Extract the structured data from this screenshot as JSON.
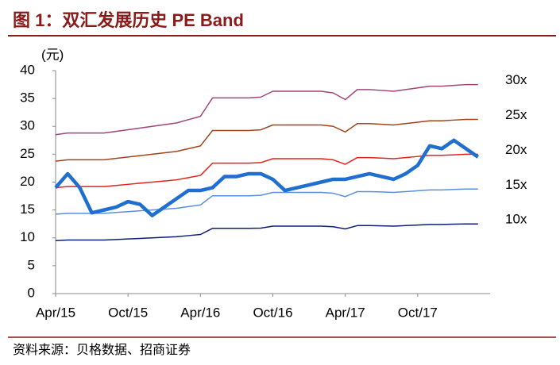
{
  "chart_data": {
    "type": "line",
    "title": "图 1：双汇发展历史 PE Band",
    "source": "资料来源：贝格数据、招商证券",
    "y_label": "(元)",
    "x": [
      0,
      1,
      2,
      3,
      4,
      5,
      6,
      7,
      8,
      9,
      10,
      11,
      12,
      13,
      14,
      15,
      16,
      17,
      18,
      19,
      20,
      21,
      22,
      23,
      24,
      25,
      26,
      27,
      28,
      29,
      30,
      31,
      32,
      33,
      34,
      35
    ],
    "xlim": [
      0,
      36
    ],
    "xticks": [
      {
        "value": 0,
        "label": "Apr/15"
      },
      {
        "value": 6,
        "label": "Oct/15"
      },
      {
        "value": 12,
        "label": "Apr/16"
      },
      {
        "value": 18,
        "label": "Oct/16"
      },
      {
        "value": 24,
        "label": "Apr/17"
      },
      {
        "value": 30,
        "label": "Oct/17"
      }
    ],
    "ylim": [
      0,
      40
    ],
    "yticks": [
      0,
      5,
      10,
      15,
      20,
      25,
      30,
      35,
      40
    ],
    "series": [
      {
        "name": "30x",
        "color": "#a0457a",
        "values": [
          28.5,
          28.8,
          28.8,
          28.8,
          28.8,
          29.1,
          29.4,
          29.7,
          30,
          30.3,
          30.6,
          31.2,
          31.8,
          35.1,
          35.1,
          35.1,
          35.1,
          35.25,
          36.3,
          36.3,
          36.3,
          36.3,
          36.3,
          36,
          34.8,
          36.6,
          36.6,
          36.45,
          36.3,
          36.6,
          36.9,
          37.2,
          37.2,
          37.35,
          37.5,
          37.5
        ]
      },
      {
        "name": "25x",
        "color": "#a0441c",
        "values": [
          23.75,
          24,
          24,
          24,
          24,
          24.25,
          24.5,
          24.75,
          25,
          25.25,
          25.5,
          26,
          26.5,
          29.25,
          29.25,
          29.25,
          29.25,
          29.38,
          30.25,
          30.25,
          30.25,
          30.25,
          30.25,
          30,
          29,
          30.5,
          30.5,
          30.38,
          30.25,
          30.5,
          30.75,
          31,
          31,
          31.13,
          31.25,
          31.25
        ]
      },
      {
        "name": "20x",
        "color": "#e2231a",
        "values": [
          19,
          19.2,
          19.2,
          19.2,
          19.2,
          19.4,
          19.6,
          19.8,
          20,
          20.2,
          20.4,
          20.8,
          21.2,
          23.4,
          23.4,
          23.4,
          23.4,
          23.5,
          24.2,
          24.2,
          24.2,
          24.2,
          24.2,
          24,
          23.2,
          24.4,
          24.4,
          24.3,
          24.2,
          24.4,
          24.6,
          24.8,
          24.8,
          24.9,
          25,
          25
        ]
      },
      {
        "name": "15x",
        "color": "#5b8fde",
        "values": [
          14.25,
          14.4,
          14.4,
          14.4,
          14.4,
          14.55,
          14.7,
          14.85,
          15,
          15.15,
          15.3,
          15.6,
          15.9,
          17.55,
          17.55,
          17.55,
          17.55,
          17.63,
          18.15,
          18.15,
          18.15,
          18.15,
          18.15,
          18,
          17.4,
          18.3,
          18.3,
          18.23,
          18.15,
          18.3,
          18.45,
          18.6,
          18.6,
          18.68,
          18.75,
          18.75
        ]
      },
      {
        "name": "10x",
        "color": "#0c1f78",
        "values": [
          9.5,
          9.6,
          9.6,
          9.6,
          9.6,
          9.7,
          9.8,
          9.9,
          10,
          10.1,
          10.2,
          10.4,
          10.6,
          11.7,
          11.7,
          11.7,
          11.7,
          11.75,
          12.1,
          12.1,
          12.1,
          12.1,
          12.1,
          12,
          11.6,
          12.2,
          12.2,
          12.15,
          12.1,
          12.2,
          12.3,
          12.4,
          12.4,
          12.45,
          12.5,
          12.5
        ]
      },
      {
        "color": "#1f6fd1",
        "values": [
          19,
          21.5,
          19,
          14.5,
          15,
          15.5,
          16.5,
          16,
          14,
          15.5,
          17,
          18.5,
          18.5,
          19,
          21,
          21,
          21.5,
          21.5,
          20.5,
          18.5,
          19,
          19.5,
          20,
          20.5,
          20.5,
          21,
          21.5,
          21,
          20.5,
          21.5,
          23,
          26.5,
          26,
          27.5,
          26,
          24.5
        ]
      }
    ]
  }
}
